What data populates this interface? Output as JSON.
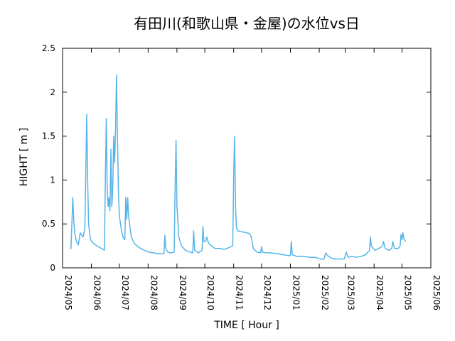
{
  "chart_data": {
    "type": "line",
    "title": "有田川(和歌山県・金屋)の水位vs日",
    "xlabel": "TIME [ Hour ]",
    "ylabel": "HIGHT [ m ]",
    "xlim": [
      "2024-05-01",
      "2025-06-01"
    ],
    "ylim": [
      0,
      2.5
    ],
    "x_tick_labels": [
      "2024/05",
      "2024/06",
      "2024/07",
      "2024/08",
      "2024/09",
      "2024/10",
      "2024/11",
      "2024/12",
      "2025/01",
      "2025/02",
      "2025/03",
      "2025/04",
      "2025/05",
      "2025/06"
    ],
    "y_tick_labels": [
      "0",
      "0.5",
      "1",
      "1.5",
      "2",
      "2.5"
    ],
    "y_ticks": [
      0,
      0.5,
      1,
      1.5,
      2,
      2.5
    ],
    "grid": false,
    "legend": "none",
    "line_color": "#56b4e9",
    "series": [
      {
        "points": [
          [
            "2024-05-09",
            0.23
          ],
          [
            "2024-05-10",
            0.22
          ],
          [
            "2024-05-11",
            0.5
          ],
          [
            "2024-05-12",
            0.8
          ],
          [
            "2024-05-13",
            0.55
          ],
          [
            "2024-05-14",
            0.4
          ],
          [
            "2024-05-16",
            0.3
          ],
          [
            "2024-05-18",
            0.26
          ],
          [
            "2024-05-20",
            0.4
          ],
          [
            "2024-05-23",
            0.35
          ],
          [
            "2024-05-25",
            0.45
          ],
          [
            "2024-05-26",
            1.1
          ],
          [
            "2024-05-27",
            1.75
          ],
          [
            "2024-05-28",
            1.0
          ],
          [
            "2024-05-29",
            0.5
          ],
          [
            "2024-05-31",
            0.32
          ],
          [
            "2024-06-03",
            0.28
          ],
          [
            "2024-06-07",
            0.25
          ],
          [
            "2024-06-12",
            0.22
          ],
          [
            "2024-06-15",
            0.2
          ],
          [
            "2024-06-16",
            1.0
          ],
          [
            "2024-06-17",
            1.7
          ],
          [
            "2024-06-18",
            0.9
          ],
          [
            "2024-06-19",
            0.7
          ],
          [
            "2024-06-20",
            0.8
          ],
          [
            "2024-06-21",
            0.65
          ],
          [
            "2024-06-22",
            1.35
          ],
          [
            "2024-06-23",
            0.7
          ],
          [
            "2024-06-24",
            0.9
          ],
          [
            "2024-06-25",
            1.5
          ],
          [
            "2024-06-26",
            1.2
          ],
          [
            "2024-06-27",
            1.6
          ],
          [
            "2024-06-28",
            2.2
          ],
          [
            "2024-06-29",
            1.5
          ],
          [
            "2024-06-30",
            0.9
          ],
          [
            "2024-07-01",
            0.6
          ],
          [
            "2024-07-03",
            0.45
          ],
          [
            "2024-07-05",
            0.35
          ],
          [
            "2024-07-07",
            0.32
          ],
          [
            "2024-07-08",
            0.8
          ],
          [
            "2024-07-09",
            0.55
          ],
          [
            "2024-07-10",
            0.8
          ],
          [
            "2024-07-11",
            0.6
          ],
          [
            "2024-07-12",
            0.5
          ],
          [
            "2024-07-14",
            0.35
          ],
          [
            "2024-07-17",
            0.28
          ],
          [
            "2024-07-20",
            0.25
          ],
          [
            "2024-07-24",
            0.22
          ],
          [
            "2024-07-28",
            0.2
          ],
          [
            "2024-08-01",
            0.18
          ],
          [
            "2024-08-07",
            0.17
          ],
          [
            "2024-08-13",
            0.16
          ],
          [
            "2024-08-18",
            0.16
          ],
          [
            "2024-08-19",
            0.37
          ],
          [
            "2024-08-20",
            0.22
          ],
          [
            "2024-08-22",
            0.18
          ],
          [
            "2024-08-26",
            0.17
          ],
          [
            "2024-08-29",
            0.18
          ],
          [
            "2024-08-30",
            0.9
          ],
          [
            "2024-08-31",
            1.45
          ],
          [
            "2024-09-01",
            0.7
          ],
          [
            "2024-09-03",
            0.35
          ],
          [
            "2024-09-06",
            0.25
          ],
          [
            "2024-09-10",
            0.2
          ],
          [
            "2024-09-15",
            0.18
          ],
          [
            "2024-09-18",
            0.17
          ],
          [
            "2024-09-19",
            0.42
          ],
          [
            "2024-09-20",
            0.2
          ],
          [
            "2024-09-24",
            0.17
          ],
          [
            "2024-09-28",
            0.2
          ],
          [
            "2024-09-29",
            0.47
          ],
          [
            "2024-09-30",
            0.3
          ],
          [
            "2024-10-02",
            0.3
          ],
          [
            "2024-10-03",
            0.35
          ],
          [
            "2024-10-05",
            0.28
          ],
          [
            "2024-10-08",
            0.25
          ],
          [
            "2024-10-12",
            0.22
          ],
          [
            "2024-10-17",
            0.22
          ],
          [
            "2024-10-22",
            0.21
          ],
          [
            "2024-10-27",
            0.23
          ],
          [
            "2024-10-31",
            0.25
          ],
          [
            "2024-11-01",
            1.05
          ],
          [
            "2024-11-02",
            1.5
          ],
          [
            "2024-11-03",
            0.7
          ],
          [
            "2024-11-04",
            0.45
          ],
          [
            "2024-11-06",
            0.42
          ],
          [
            "2024-11-10",
            0.41
          ],
          [
            "2024-11-15",
            0.4
          ],
          [
            "2024-11-18",
            0.39
          ],
          [
            "2024-11-20",
            0.35
          ],
          [
            "2024-11-22",
            0.22
          ],
          [
            "2024-11-26",
            0.18
          ],
          [
            "2024-11-30",
            0.17
          ],
          [
            "2024-12-01",
            0.24
          ],
          [
            "2024-12-02",
            0.18
          ],
          [
            "2024-12-06",
            0.17
          ],
          [
            "2024-12-12",
            0.17
          ],
          [
            "2024-12-18",
            0.16
          ],
          [
            "2024-12-24",
            0.15
          ],
          [
            "2024-12-30",
            0.14
          ],
          [
            "2025-01-01",
            0.14
          ],
          [
            "2025-01-02",
            0.3
          ],
          [
            "2025-01-03",
            0.15
          ],
          [
            "2025-01-08",
            0.13
          ],
          [
            "2025-01-15",
            0.13
          ],
          [
            "2025-01-22",
            0.12
          ],
          [
            "2025-01-28",
            0.12
          ],
          [
            "2025-02-02",
            0.1
          ],
          [
            "2025-02-06",
            0.1
          ],
          [
            "2025-02-08",
            0.17
          ],
          [
            "2025-02-10",
            0.14
          ],
          [
            "2025-02-14",
            0.11
          ],
          [
            "2025-02-18",
            0.1
          ],
          [
            "2025-02-23",
            0.1
          ],
          [
            "2025-02-28",
            0.1
          ],
          [
            "2025-03-02",
            0.18
          ],
          [
            "2025-03-04",
            0.12
          ],
          [
            "2025-03-08",
            0.13
          ],
          [
            "2025-03-13",
            0.12
          ],
          [
            "2025-03-18",
            0.13
          ],
          [
            "2025-03-23",
            0.15
          ],
          [
            "2025-03-27",
            0.2
          ],
          [
            "2025-03-28",
            0.35
          ],
          [
            "2025-03-29",
            0.25
          ],
          [
            "2025-04-02",
            0.2
          ],
          [
            "2025-04-06",
            0.22
          ],
          [
            "2025-04-10",
            0.25
          ],
          [
            "2025-04-11",
            0.3
          ],
          [
            "2025-04-13",
            0.22
          ],
          [
            "2025-04-17",
            0.2
          ],
          [
            "2025-04-20",
            0.22
          ],
          [
            "2025-04-21",
            0.3
          ],
          [
            "2025-04-23",
            0.22
          ],
          [
            "2025-04-27",
            0.22
          ],
          [
            "2025-04-29",
            0.25
          ],
          [
            "2025-04-30",
            0.38
          ],
          [
            "2025-05-01",
            0.32
          ],
          [
            "2025-05-02",
            0.4
          ],
          [
            "2025-05-03",
            0.33
          ],
          [
            "2025-05-05",
            0.3
          ]
        ]
      }
    ]
  }
}
